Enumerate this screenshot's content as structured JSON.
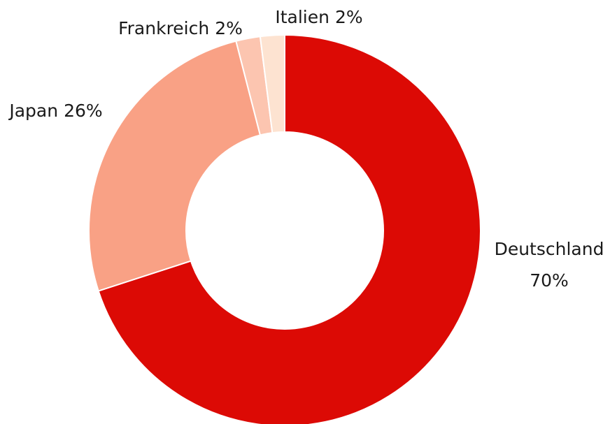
{
  "chart_data": {
    "type": "donut",
    "categories": [
      "Deutschland",
      "Japan",
      "Frankreich",
      "Italien"
    ],
    "values": [
      70,
      26,
      2,
      2
    ],
    "value_labels": [
      "70%",
      "26%",
      "2%",
      "2%"
    ],
    "colors": [
      "#dc0a05",
      "#f9a185",
      "#fcc5b0",
      "#fde3d1"
    ]
  }
}
